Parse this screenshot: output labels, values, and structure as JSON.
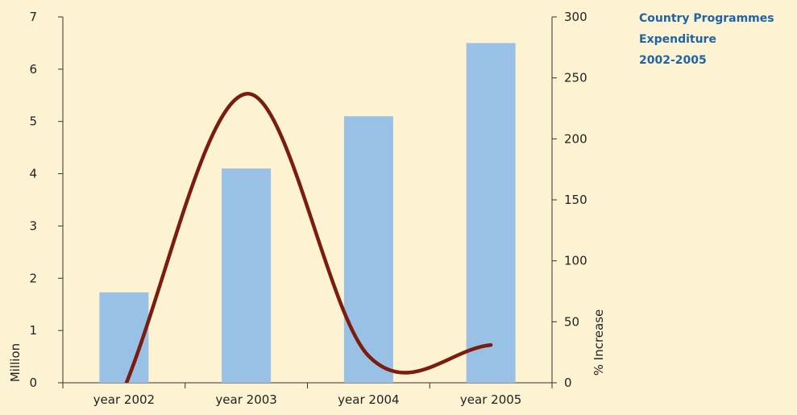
{
  "chart_data": {
    "type": "bar",
    "title_lines": [
      "Country Programmes",
      "Expenditure",
      "2002-2005"
    ],
    "categories": [
      "year 2002",
      "year 2003",
      "year 2004",
      "year 2005"
    ],
    "series": [
      {
        "type": "bar",
        "axis": "left",
        "values": [
          1.73,
          4.1,
          5.1,
          6.5
        ],
        "color": "#99c1e6"
      },
      {
        "type": "line",
        "axis": "right",
        "smooth": true,
        "values": [
          -5,
          237,
          22,
          31
        ],
        "color": "#7a1d0e"
      }
    ],
    "ylabel": "Million",
    "ylim": [
      0,
      7
    ],
    "yticks": [
      0,
      1,
      2,
      3,
      4,
      5,
      6,
      7
    ],
    "y2label": "% Increase",
    "y2lim": [
      0,
      300
    ],
    "y2ticks": [
      0,
      50,
      100,
      150,
      200,
      250,
      300
    ],
    "grid": false,
    "legend": "none",
    "colors": {
      "background": "#fdf2d1",
      "title": "#1d64a8",
      "axis": "#333333"
    }
  }
}
